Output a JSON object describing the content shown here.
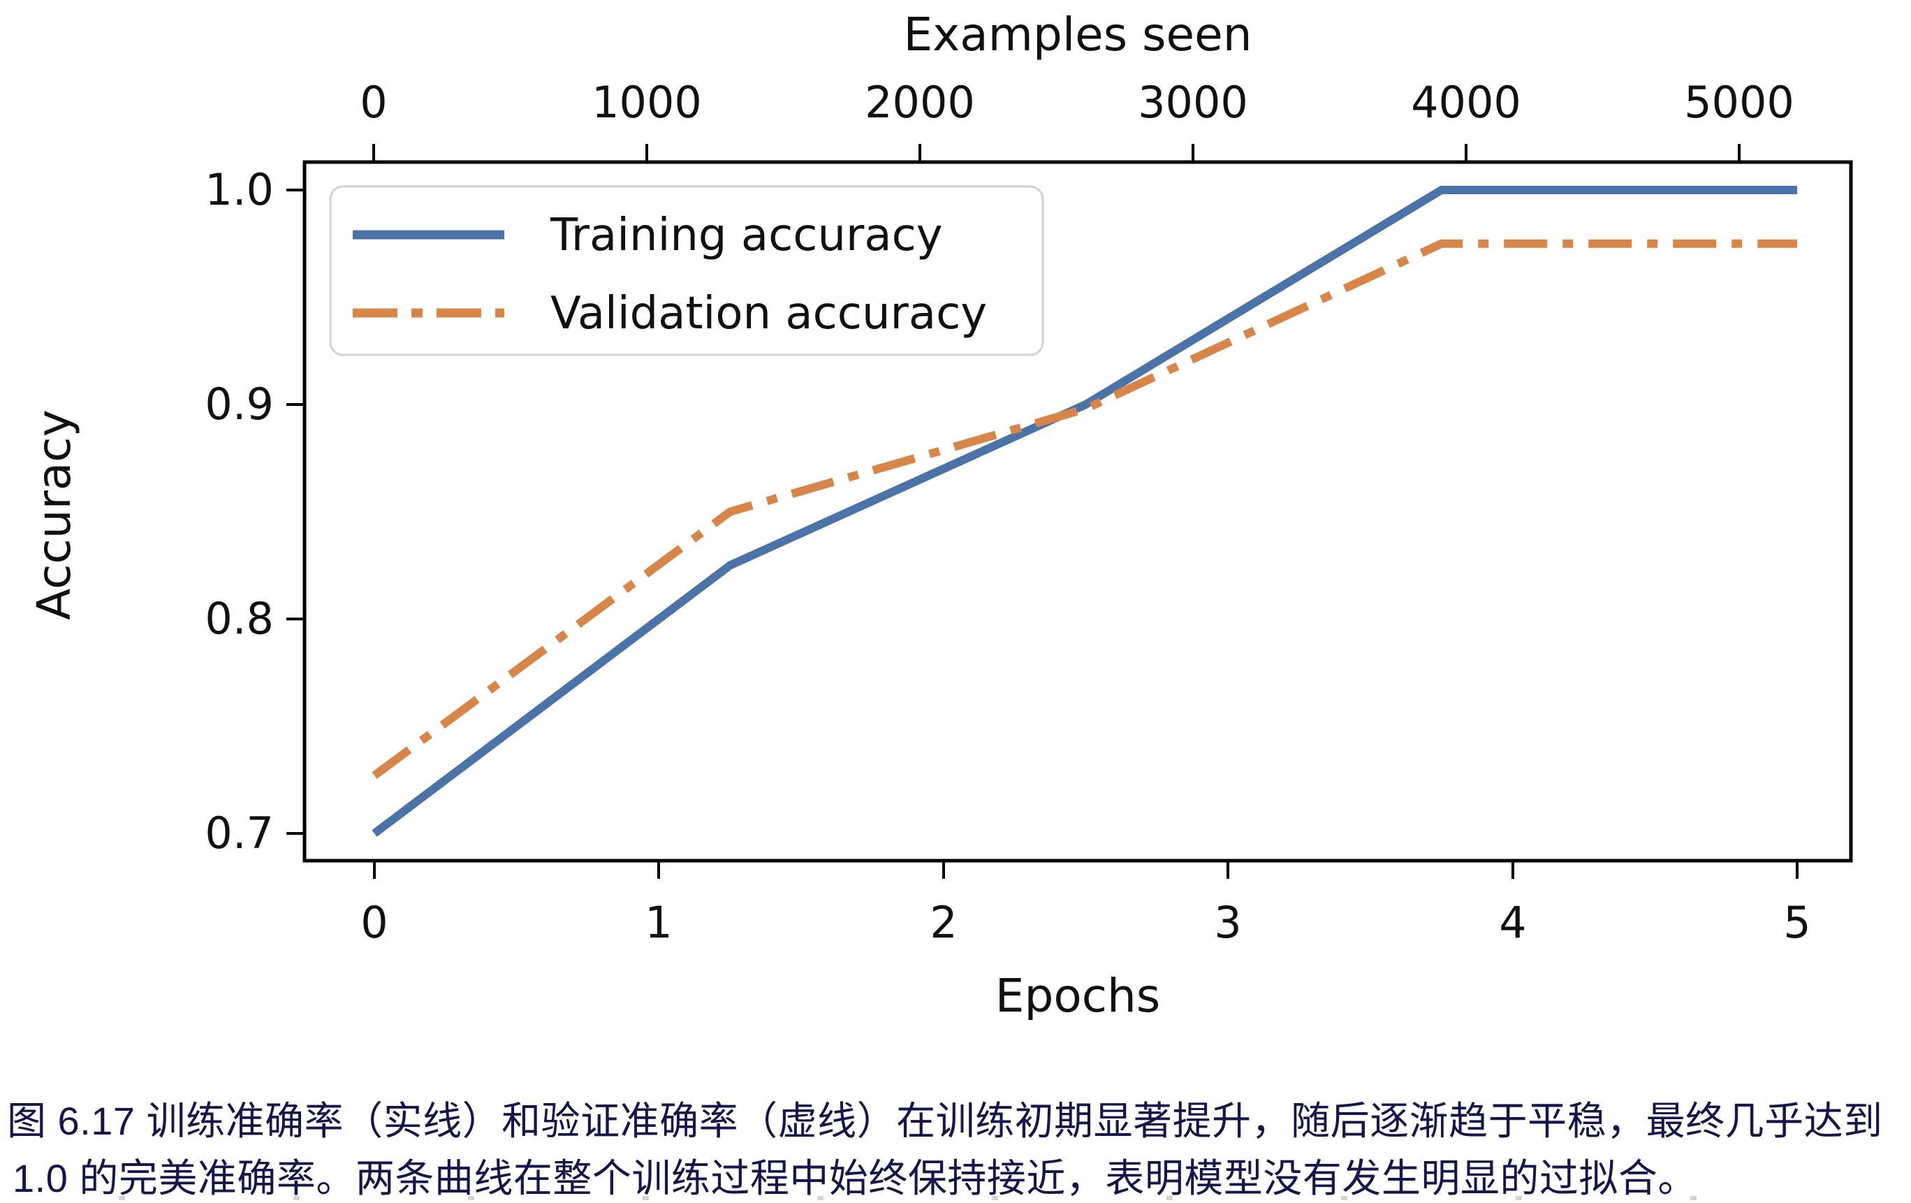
{
  "figure": {
    "caption_line1": "图 6.17 训练准确率（实线）和验证准确率（虚线）在训练初期显著提升，随后逐渐趋于平稳，最终几乎达到",
    "caption_line2": "1.0 的完美准确率。两条曲线在整个训练过程中始终保持接近，表明模型没有发生明显的过拟合。",
    "caption_color": "#16164a"
  },
  "chart_data": {
    "type": "line",
    "top_xlabel": "Examples seen",
    "bottom_xlabel": "Epochs",
    "ylabel": "Accuracy",
    "x_epochs": [
      0,
      1.25,
      2.5,
      3.75,
      5
    ],
    "series": [
      {
        "name": "Training accuracy",
        "style": "solid",
        "color": "#4c73a8",
        "values": [
          0.7,
          0.825,
          0.9,
          1.0,
          1.0
        ]
      },
      {
        "name": "Validation accuracy",
        "style": "dash-dot",
        "color": "#d8854a",
        "values": [
          0.727,
          0.85,
          0.898,
          0.975,
          0.975
        ]
      }
    ],
    "xlim_epochs": [
      -0.25,
      5.2
    ],
    "ylim": [
      0.688,
      1.013
    ],
    "xticks_bottom": [
      "0",
      "1",
      "2",
      "3",
      "4",
      "5"
    ],
    "xticks_top": [
      "0",
      "1000",
      "2000",
      "3000",
      "4000",
      "5000"
    ],
    "xticks_top_values": [
      0,
      1000,
      2000,
      3000,
      4000,
      5000
    ],
    "examples_per_epoch": 1040,
    "yticks": [
      "1.0",
      "0.9",
      "0.8",
      "0.7"
    ],
    "ytick_values": [
      1.0,
      0.9,
      0.8,
      0.7
    ],
    "grid": false,
    "legend_position": "upper left"
  }
}
